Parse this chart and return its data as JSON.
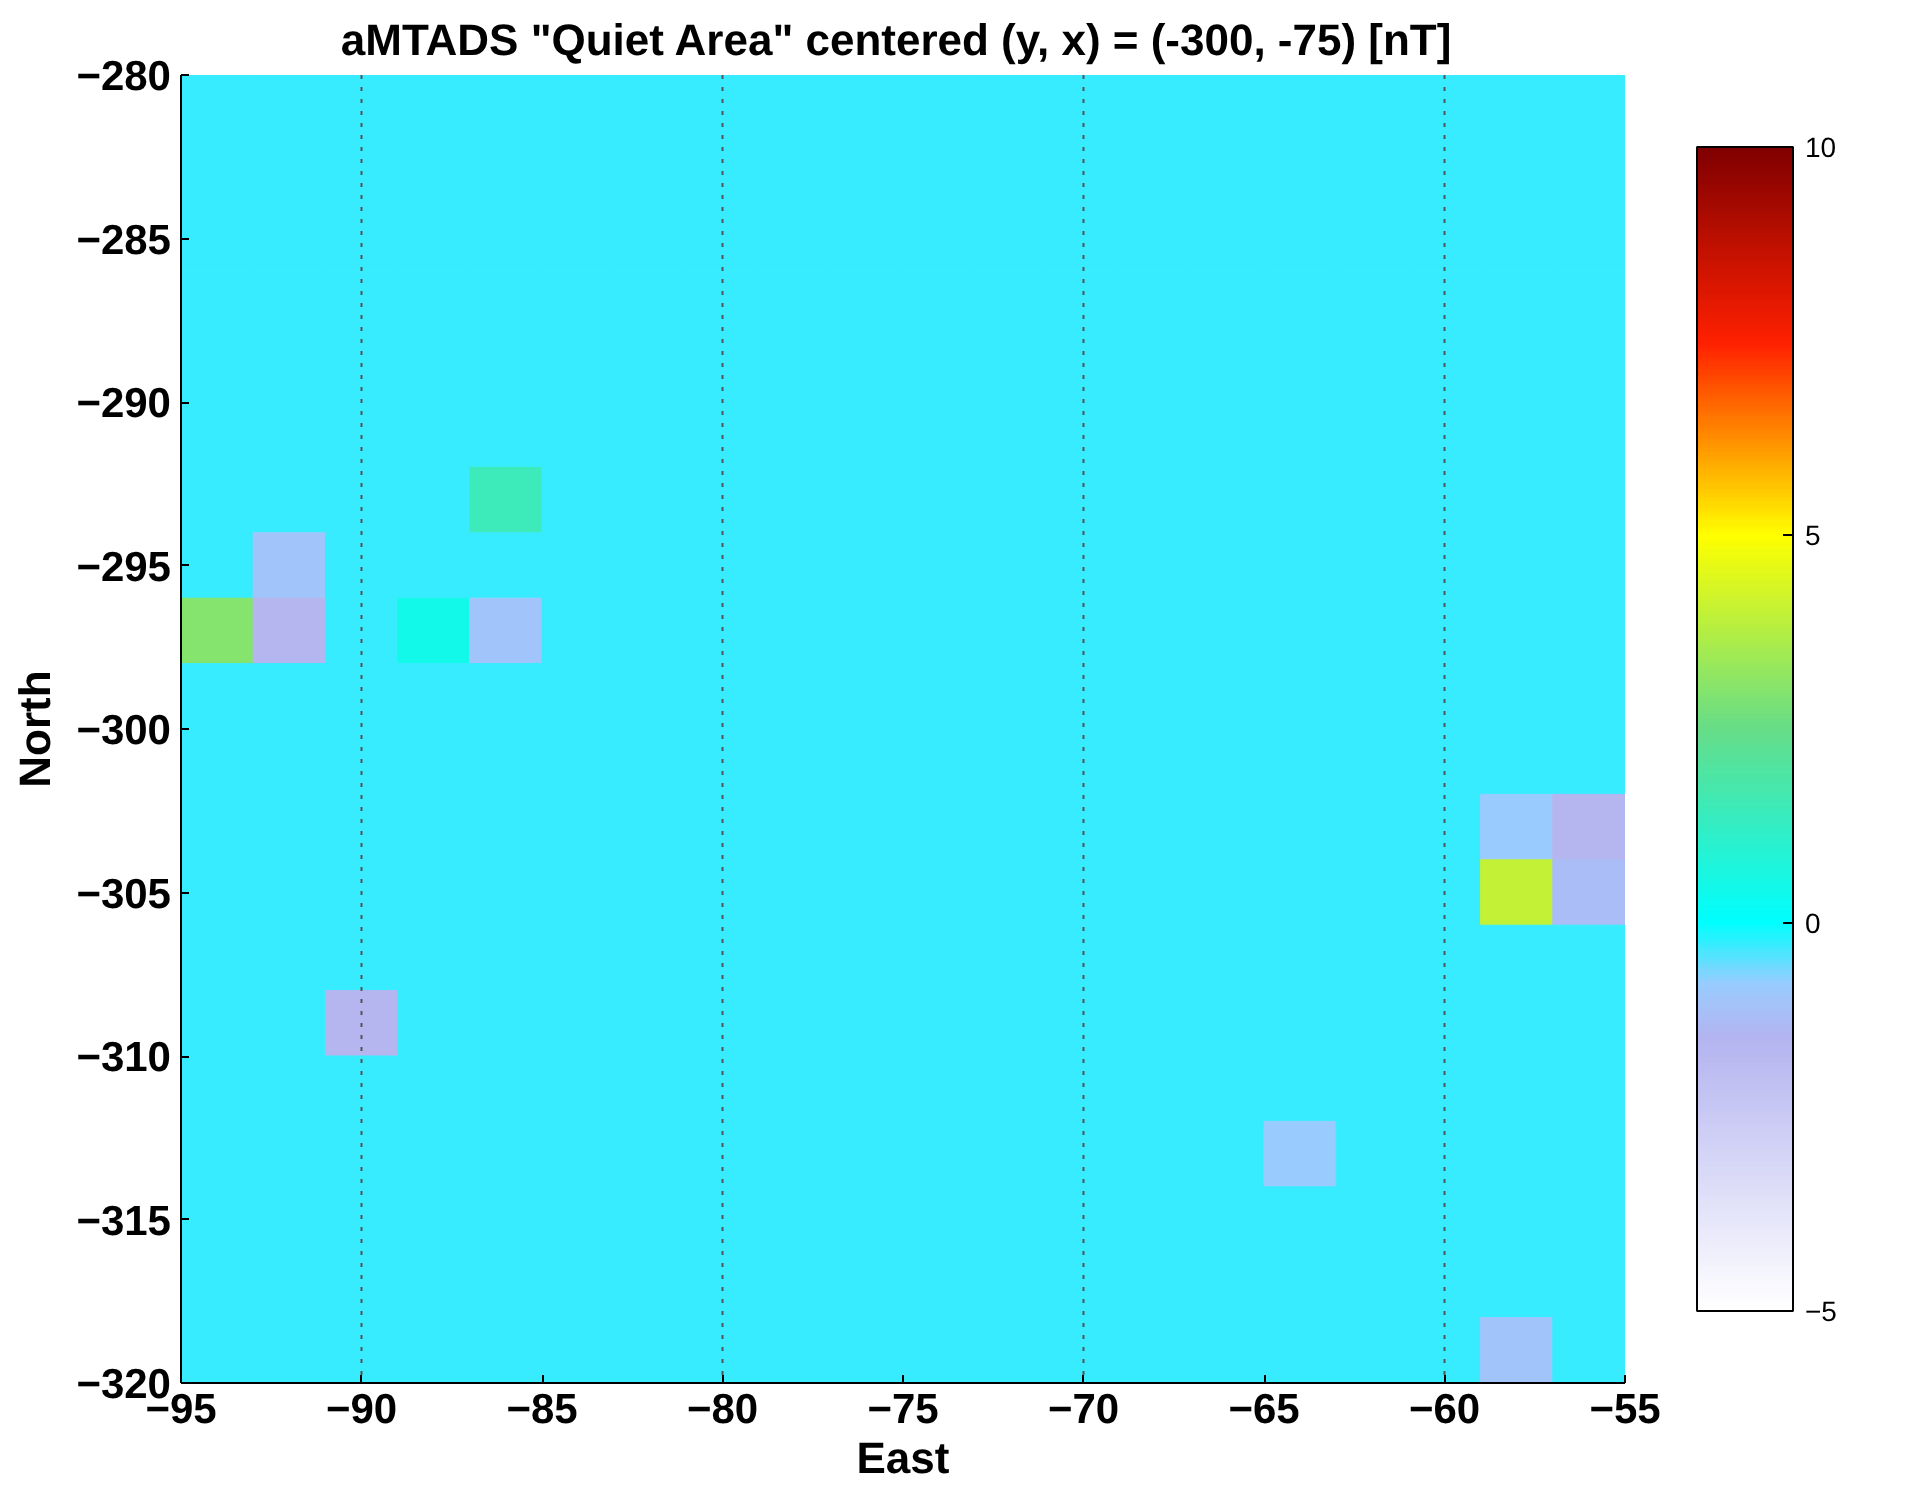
{
  "chart_data": {
    "type": "heatmap",
    "title": "aMTADS \"Quiet Area\" centered (y, x) = (-300, -75)  [nT]",
    "xlabel": "East",
    "ylabel": "North",
    "x": [
      -94,
      -92,
      -90,
      -88,
      -86,
      -84,
      -82,
      -80,
      -78,
      -76,
      -74,
      -72,
      -70,
      -68,
      -66,
      -64,
      -62,
      -60,
      -58,
      -56
    ],
    "y": [
      -281,
      -283,
      -285,
      -287,
      -289,
      -291,
      -293,
      -295,
      -297,
      -299,
      -301,
      -303,
      -305,
      -307,
      -309,
      -311,
      -313,
      -315,
      -317,
      -319
    ],
    "cells": [
      [
        -0.3,
        -0.3,
        -0.3,
        -0.3,
        -0.3,
        -0.3,
        -0.3,
        -0.3,
        -0.3,
        -0.3,
        -0.3,
        -0.3,
        -0.3,
        -0.3,
        -0.3,
        -0.3,
        -0.3,
        -0.3,
        -0.3,
        -0.3
      ],
      [
        -0.3,
        -0.3,
        -0.3,
        -0.3,
        -0.3,
        -0.3,
        -0.3,
        -0.3,
        -0.3,
        -0.3,
        -0.3,
        -0.3,
        -0.3,
        -0.3,
        -0.3,
        -0.3,
        -0.3,
        -0.3,
        -0.3,
        -0.3
      ],
      [
        -0.3,
        -0.3,
        -0.3,
        -0.3,
        -0.3,
        -0.3,
        -0.3,
        -0.3,
        -0.3,
        -0.3,
        -0.3,
        -0.3,
        -0.3,
        -0.3,
        -0.3,
        -0.3,
        -0.3,
        -0.3,
        -0.3,
        -0.3
      ],
      [
        -0.3,
        -0.3,
        -0.3,
        -0.3,
        -0.3,
        -0.3,
        -0.3,
        -0.3,
        -0.3,
        -0.3,
        -0.3,
        -0.3,
        -0.3,
        -0.3,
        -0.3,
        -0.3,
        -0.3,
        -0.3,
        -0.3,
        -0.3
      ],
      [
        -0.3,
        -0.3,
        -0.3,
        -0.3,
        -0.3,
        -0.3,
        -0.3,
        -0.3,
        -0.3,
        -0.3,
        -0.3,
        -0.3,
        -0.3,
        -0.3,
        -0.3,
        -0.3,
        -0.3,
        -0.3,
        -0.3,
        -0.3
      ],
      [
        -0.3,
        -0.3,
        -0.3,
        -0.3,
        -0.3,
        -0.3,
        -0.3,
        -0.3,
        -0.3,
        -0.3,
        -0.3,
        -0.3,
        -0.3,
        -0.3,
        -0.3,
        -0.3,
        -0.3,
        -0.3,
        -0.3,
        -0.3
      ],
      [
        -0.3,
        -0.3,
        -0.3,
        -0.3,
        1.5,
        -0.3,
        -0.3,
        -0.3,
        -0.3,
        -0.3,
        -0.3,
        -0.3,
        -0.3,
        -0.3,
        -0.3,
        -0.3,
        -0.3,
        -0.3,
        -0.3,
        -0.3
      ],
      [
        -0.3,
        -1,
        -0.3,
        -0.3,
        -0.3,
        -0.3,
        -0.3,
        -0.3,
        -0.3,
        -0.3,
        -0.3,
        -0.3,
        -0.3,
        -0.3,
        -0.3,
        -0.3,
        -0.3,
        -0.3,
        -0.3,
        -0.3
      ],
      [
        3,
        -1.5,
        -0.3,
        0.5,
        -1,
        -0.3,
        -0.3,
        -0.3,
        -0.3,
        -0.3,
        -0.3,
        -0.3,
        -0.3,
        -0.3,
        -0.3,
        -0.3,
        -0.3,
        -0.3,
        -0.3,
        -0.3
      ],
      [
        -0.3,
        -0.3,
        -0.3,
        -0.3,
        -0.3,
        -0.3,
        -0.3,
        -0.3,
        -0.3,
        -0.3,
        -0.3,
        -0.3,
        -0.3,
        -0.3,
        -0.3,
        -0.3,
        -0.3,
        -0.3,
        -0.3,
        -0.3
      ],
      [
        -0.3,
        -0.3,
        -0.3,
        -0.3,
        -0.3,
        -0.3,
        -0.3,
        -0.3,
        -0.3,
        -0.3,
        -0.3,
        -0.3,
        -0.3,
        -0.3,
        -0.3,
        -0.3,
        -0.3,
        -0.3,
        -0.3,
        -0.3
      ],
      [
        -0.3,
        -0.3,
        -0.3,
        -0.3,
        -0.3,
        -0.3,
        -0.3,
        -0.3,
        -0.3,
        -0.3,
        -0.3,
        -0.3,
        -0.3,
        -0.3,
        -0.3,
        -0.3,
        -0.3,
        -0.3,
        -0.8,
        -1.5
      ],
      [
        -0.3,
        -0.3,
        -0.3,
        -0.3,
        -0.3,
        -0.3,
        -0.3,
        -0.3,
        -0.3,
        -0.3,
        -0.3,
        -0.3,
        -0.3,
        -0.3,
        -0.3,
        -0.3,
        -0.3,
        -0.3,
        4,
        -1.2
      ],
      [
        -0.3,
        -0.3,
        -0.3,
        -0.3,
        -0.3,
        -0.3,
        -0.3,
        -0.3,
        -0.3,
        -0.3,
        -0.3,
        -0.3,
        -0.3,
        -0.3,
        -0.3,
        -0.3,
        -0.3,
        -0.3,
        -0.3,
        -0.3
      ],
      [
        -0.3,
        -0.3,
        -1.5,
        -0.3,
        -0.3,
        -0.3,
        -0.3,
        -0.3,
        -0.3,
        -0.3,
        -0.3,
        -0.3,
        -0.3,
        -0.3,
        -0.3,
        -0.3,
        -0.3,
        -0.3,
        -0.3,
        -0.3
      ],
      [
        -0.3,
        -0.3,
        -0.3,
        -0.3,
        -0.3,
        -0.3,
        -0.3,
        -0.3,
        -0.3,
        -0.3,
        -0.3,
        -0.3,
        -0.3,
        -0.3,
        -0.3,
        -0.3,
        -0.3,
        -0.3,
        -0.3,
        -0.3
      ],
      [
        -0.3,
        -0.3,
        -0.3,
        -0.3,
        -0.3,
        -0.3,
        -0.3,
        -0.3,
        -0.3,
        -0.3,
        -0.3,
        -0.3,
        -0.3,
        -0.3,
        -0.3,
        -0.8,
        -0.3,
        -0.3,
        -0.3,
        -0.3
      ],
      [
        -0.3,
        -0.3,
        -0.3,
        -0.3,
        -0.3,
        -0.3,
        -0.3,
        -0.3,
        -0.3,
        -0.3,
        -0.3,
        -0.3,
        -0.3,
        -0.3,
        -0.3,
        -0.3,
        -0.3,
        -0.3,
        -0.3,
        -0.3
      ],
      [
        -0.3,
        -0.3,
        -0.3,
        -0.3,
        -0.3,
        -0.3,
        -0.3,
        -0.3,
        -0.3,
        -0.3,
        -0.3,
        -0.3,
        -0.3,
        -0.3,
        -0.3,
        -0.3,
        -0.3,
        -0.3,
        -0.3,
        -0.3
      ],
      [
        -0.3,
        -0.3,
        -0.3,
        -0.3,
        -0.3,
        -0.3,
        -0.3,
        -0.3,
        -0.3,
        -0.3,
        -0.3,
        -0.3,
        -0.3,
        -0.3,
        -0.3,
        -0.3,
        -0.3,
        -0.3,
        -1,
        -0.3
      ]
    ],
    "xlim": [
      -95,
      -55
    ],
    "xticks": [
      -95,
      -90,
      -85,
      -80,
      -75,
      -70,
      -65,
      -60,
      -55
    ],
    "ylim": [
      -320,
      -280
    ],
    "yticks": [
      -320,
      -315,
      -310,
      -305,
      -300,
      -295,
      -290,
      -285,
      -280
    ],
    "clim": [
      -5,
      10
    ],
    "cticks": [
      -5,
      0,
      5,
      10
    ],
    "ref_lines": [
      {
        "axis": "x",
        "value": -90,
        "line_style": "dotted",
        "color": "#555555"
      },
      {
        "axis": "x",
        "value": -80,
        "line_style": "dotted",
        "color": "#555555"
      },
      {
        "axis": "x",
        "value": -70,
        "line_style": "dotted",
        "color": "#555555"
      },
      {
        "axis": "x",
        "value": -60,
        "line_style": "dotted",
        "color": "#555555"
      }
    ]
  }
}
